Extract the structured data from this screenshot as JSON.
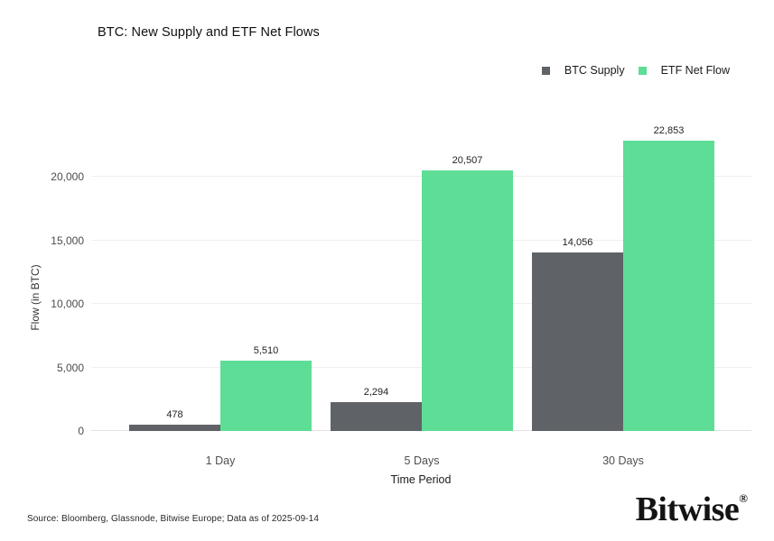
{
  "chart_data": {
    "type": "bar",
    "title": "BTC: New Supply and ETF Net Flows",
    "categories": [
      "1 Day",
      "5 Days",
      "30 Days"
    ],
    "series": [
      {
        "name": "BTC Supply",
        "color": "#5f6367",
        "values": [
          478,
          2294,
          14056
        ]
      },
      {
        "name": "ETF Net Flow",
        "color": "#5edd96",
        "values": [
          5510,
          20507,
          22853
        ]
      }
    ],
    "data_labels": [
      [
        "478",
        "2,294",
        "14,056"
      ],
      [
        "5,510",
        "20,507",
        "22,853"
      ]
    ],
    "xlabel": "Time Period",
    "ylabel": "Flow (in BTC)",
    "yticks": [
      0,
      5000,
      10000,
      15000,
      20000
    ],
    "ytick_labels": [
      "0",
      "5,000",
      "10,000",
      "15,000",
      "20,000"
    ],
    "ylim": [
      0,
      26000
    ],
    "grid": true,
    "legend_position": "top-right"
  },
  "footer": {
    "source": "Source: Bloomberg, Glassnode, Bitwise Europe; Data as of 2025-09-14",
    "logo_text": "Bitwise",
    "logo_mark": "®"
  }
}
